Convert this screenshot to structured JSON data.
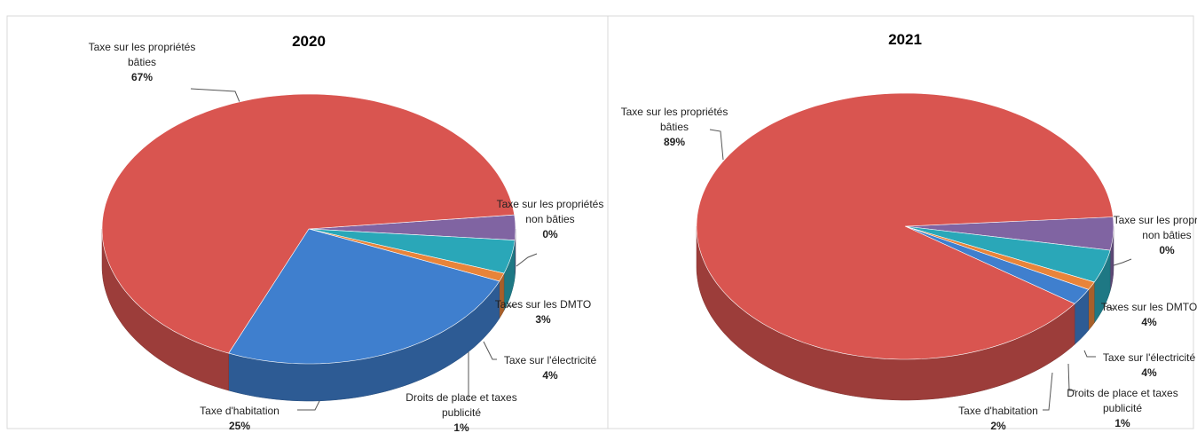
{
  "chart_data": [
    {
      "type": "pie",
      "title": "2020",
      "categories": [
        "Taxe sur les propriétés non bâties",
        "Taxes sur les DMTO",
        "Taxe sur l'électricité",
        "Droits de place et taxes publicité",
        "Taxe d'habitation",
        "Taxe sur les propriétés bâties"
      ],
      "values": [
        0,
        3,
        4,
        1,
        25,
        67
      ],
      "value_labels": [
        "0%",
        "3%",
        "4%",
        "1%",
        "25%",
        "67%"
      ],
      "colors": [
        "#9bbb59",
        "#8064a2",
        "#2aa7b8",
        "#e8843a",
        "#3f7fce",
        "#d95550"
      ]
    },
    {
      "type": "pie",
      "title": "2021",
      "categories": [
        "Taxe sur les propriétés non bâties",
        "Taxes sur les DMTO",
        "Taxe sur l'électricité",
        "Droits de place et taxes publicité",
        "Taxe d'habitation",
        "Taxe sur les propriétés bâties"
      ],
      "values": [
        0,
        4,
        4,
        1,
        2,
        89
      ],
      "value_labels": [
        "0%",
        "4%",
        "4%",
        "1%",
        "2%",
        "89%"
      ],
      "colors": [
        "#9bbb59",
        "#8064a2",
        "#2aa7b8",
        "#e8843a",
        "#3f7fce",
        "#d95550"
      ]
    }
  ]
}
